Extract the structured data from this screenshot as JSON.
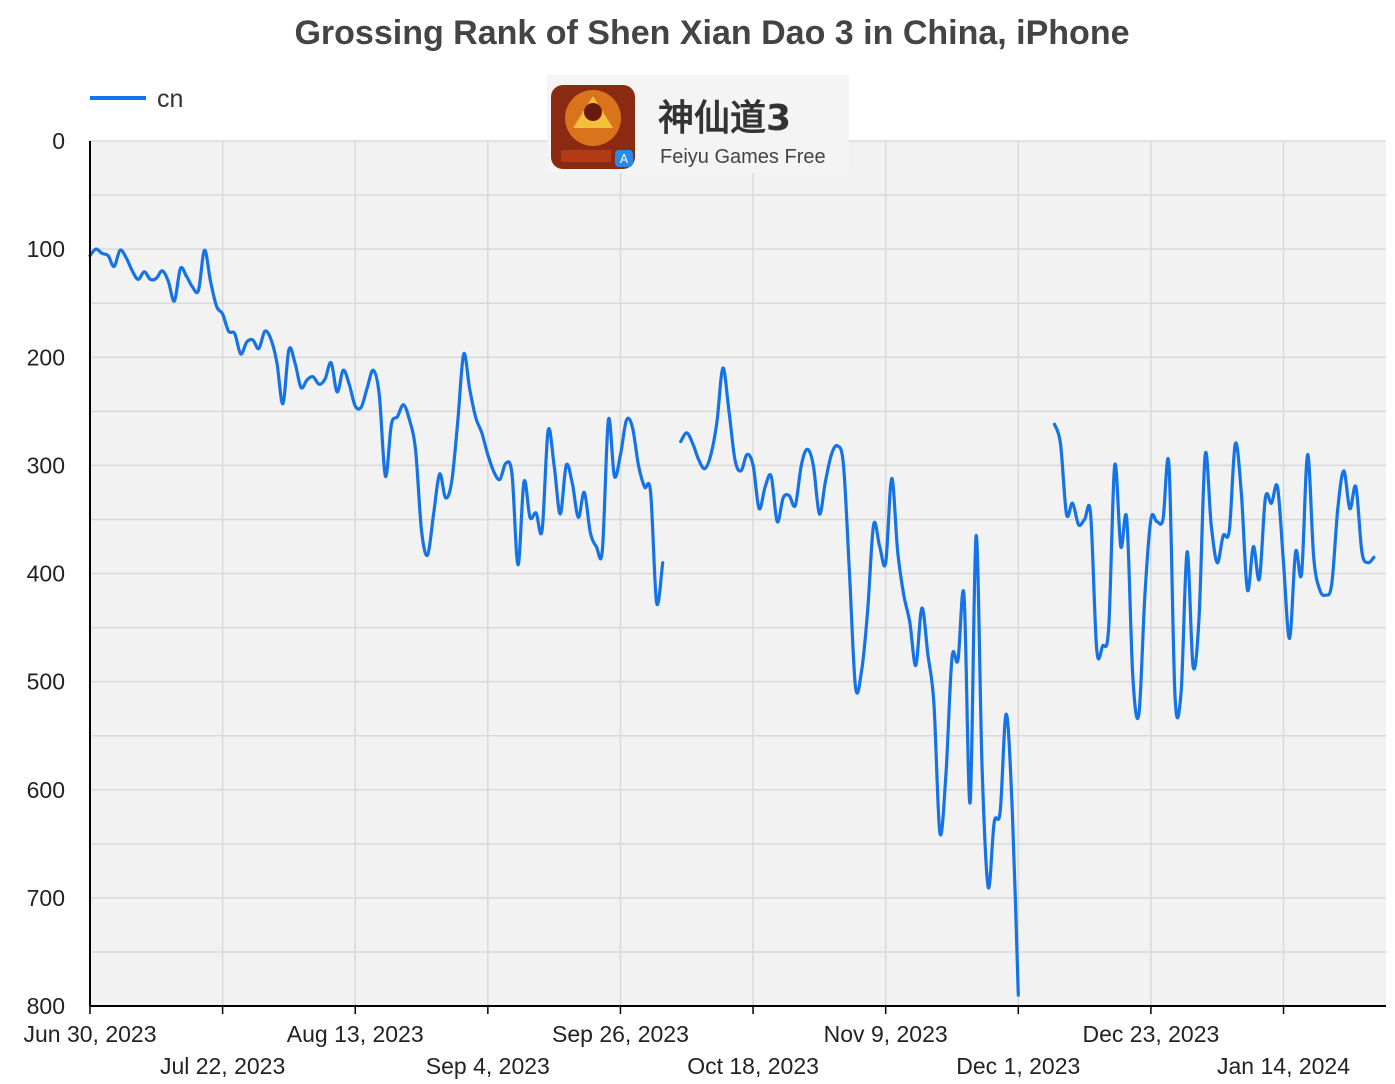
{
  "chart_data": {
    "type": "line",
    "title": "Grossing Rank of Shen Xian Dao 3 in China, iPhone",
    "legend": {
      "position": "top-left",
      "entries": [
        "cn"
      ]
    },
    "app_badge": {
      "name": "神仙道3",
      "publisher": "Feiyu Games Free",
      "icon": "game-app-icon"
    },
    "y_axis": {
      "inverted": true,
      "ylim": [
        0,
        800
      ],
      "ticks": [
        "0",
        "100",
        "200",
        "300",
        "400",
        "500",
        "600",
        "700",
        "800"
      ]
    },
    "x_axis": {
      "range": [
        "2023-06-30",
        "2024-01-31"
      ],
      "ticks": [
        {
          "date": "2023-06-30",
          "label": "Jun 30, 2023"
        },
        {
          "date": "2023-07-22",
          "label": "Jul 22, 2023"
        },
        {
          "date": "2023-08-13",
          "label": "Aug 13, 2023"
        },
        {
          "date": "2023-09-04",
          "label": "Sep 4, 2023"
        },
        {
          "date": "2023-09-26",
          "label": "Sep 26, 2023"
        },
        {
          "date": "2023-10-18",
          "label": "Oct 18, 2023"
        },
        {
          "date": "2023-11-09",
          "label": "Nov 9, 2023"
        },
        {
          "date": "2023-12-01",
          "label": "Dec 1, 2023"
        },
        {
          "date": "2023-12-23",
          "label": "Dec 23, 2023"
        },
        {
          "date": "2024-01-14",
          "label": "Jan 14, 2024"
        }
      ]
    },
    "grid": true,
    "colors": {
      "series": "#1473e6",
      "plot_bg": "#f2f2f2",
      "grid": "#d9d9d9"
    },
    "series": [
      {
        "name": "cn",
        "segments": [
          [
            [
              "2023-06-30",
              106
            ],
            [
              "2023-07-01",
              100
            ],
            [
              "2023-07-02",
              104
            ],
            [
              "2023-07-03",
              106
            ],
            [
              "2023-07-04",
              116
            ],
            [
              "2023-07-05",
              101
            ],
            [
              "2023-07-06",
              108
            ],
            [
              "2023-07-07",
              120
            ],
            [
              "2023-07-08",
              128
            ],
            [
              "2023-07-09",
              121
            ],
            [
              "2023-07-10",
              128
            ],
            [
              "2023-07-11",
              127
            ],
            [
              "2023-07-12",
              120
            ],
            [
              "2023-07-13",
              130
            ],
            [
              "2023-07-14",
              148
            ],
            [
              "2023-07-15",
              118
            ],
            [
              "2023-07-16",
              125
            ],
            [
              "2023-07-17",
              135
            ],
            [
              "2023-07-18",
              138
            ],
            [
              "2023-07-19",
              101
            ],
            [
              "2023-07-20",
              130
            ],
            [
              "2023-07-21",
              153
            ],
            [
              "2023-07-22",
              160
            ],
            [
              "2023-07-23",
              176
            ],
            [
              "2023-07-24",
              178
            ],
            [
              "2023-07-25",
              197
            ],
            [
              "2023-07-26",
              186
            ],
            [
              "2023-07-27",
              184
            ],
            [
              "2023-07-28",
              192
            ],
            [
              "2023-07-29",
              176
            ],
            [
              "2023-07-30",
              183
            ],
            [
              "2023-07-31",
              205
            ],
            [
              "2023-08-01",
              243
            ],
            [
              "2023-08-02",
              193
            ],
            [
              "2023-08-03",
              205
            ],
            [
              "2023-08-04",
              228
            ],
            [
              "2023-08-05",
              221
            ],
            [
              "2023-08-06",
              218
            ],
            [
              "2023-08-07",
              225
            ],
            [
              "2023-08-08",
              220
            ],
            [
              "2023-08-09",
              205
            ],
            [
              "2023-08-10",
              232
            ],
            [
              "2023-08-11",
              212
            ],
            [
              "2023-08-12",
              225
            ],
            [
              "2023-08-13",
              245
            ],
            [
              "2023-08-14",
              246
            ],
            [
              "2023-08-15",
              228
            ],
            [
              "2023-08-16",
              212
            ],
            [
              "2023-08-17",
              235
            ],
            [
              "2023-08-18",
              310
            ],
            [
              "2023-08-19",
              262
            ],
            [
              "2023-08-20",
              255
            ],
            [
              "2023-08-21",
              244
            ],
            [
              "2023-08-22",
              258
            ],
            [
              "2023-08-23",
              285
            ],
            [
              "2023-08-24",
              360
            ],
            [
              "2023-08-25",
              383
            ],
            [
              "2023-08-26",
              345
            ],
            [
              "2023-08-27",
              308
            ],
            [
              "2023-08-28",
              330
            ],
            [
              "2023-08-29",
              315
            ],
            [
              "2023-08-30",
              260
            ],
            [
              "2023-08-31",
              197
            ],
            [
              "2023-09-01",
              230
            ],
            [
              "2023-09-02",
              256
            ],
            [
              "2023-09-03",
              270
            ],
            [
              "2023-09-04",
              290
            ],
            [
              "2023-09-05",
              306
            ],
            [
              "2023-09-06",
              313
            ],
            [
              "2023-09-07",
              298
            ],
            [
              "2023-09-08",
              308
            ],
            [
              "2023-09-09",
              392
            ],
            [
              "2023-09-10",
              315
            ],
            [
              "2023-09-11",
              348
            ],
            [
              "2023-09-12",
              344
            ],
            [
              "2023-09-13",
              360
            ],
            [
              "2023-09-14",
              268
            ],
            [
              "2023-09-15",
              300
            ],
            [
              "2023-09-16",
              345
            ],
            [
              "2023-09-17",
              300
            ],
            [
              "2023-09-18",
              316
            ],
            [
              "2023-09-19",
              348
            ],
            [
              "2023-09-20",
              325
            ],
            [
              "2023-09-21",
              362
            ],
            [
              "2023-09-22",
              375
            ],
            [
              "2023-09-23",
              378
            ],
            [
              "2023-09-24",
              258
            ],
            [
              "2023-09-25",
              310
            ],
            [
              "2023-09-26",
              290
            ],
            [
              "2023-09-27",
              258
            ],
            [
              "2023-09-28",
              265
            ],
            [
              "2023-09-29",
              300
            ],
            [
              "2023-09-30",
              320
            ],
            [
              "2023-10-01",
              325
            ],
            [
              "2023-10-02",
              427
            ],
            [
              "2023-10-03",
              390
            ]
          ],
          [
            [
              "2023-10-06",
              278
            ],
            [
              "2023-10-07",
              270
            ],
            [
              "2023-10-08",
              280
            ],
            [
              "2023-10-09",
              295
            ],
            [
              "2023-10-10",
              303
            ],
            [
              "2023-10-11",
              290
            ],
            [
              "2023-10-12",
              260
            ],
            [
              "2023-10-13",
              210
            ],
            [
              "2023-10-14",
              250
            ],
            [
              "2023-10-15",
              295
            ],
            [
              "2023-10-16",
              305
            ],
            [
              "2023-10-17",
              290
            ],
            [
              "2023-10-18",
              300
            ],
            [
              "2023-10-19",
              340
            ],
            [
              "2023-10-20",
              320
            ],
            [
              "2023-10-21",
              310
            ],
            [
              "2023-10-22",
              352
            ],
            [
              "2023-10-23",
              330
            ],
            [
              "2023-10-24",
              328
            ],
            [
              "2023-10-25",
              337
            ],
            [
              "2023-10-26",
              300
            ],
            [
              "2023-10-27",
              285
            ],
            [
              "2023-10-28",
              300
            ],
            [
              "2023-10-29",
              345
            ],
            [
              "2023-10-30",
              315
            ],
            [
              "2023-10-31",
              290
            ],
            [
              "2023-11-01",
              282
            ],
            [
              "2023-11-02",
              300
            ],
            [
              "2023-11-03",
              400
            ],
            [
              "2023-11-04",
              505
            ],
            [
              "2023-11-05",
              490
            ],
            [
              "2023-11-06",
              435
            ],
            [
              "2023-11-07",
              355
            ],
            [
              "2023-11-08",
              375
            ],
            [
              "2023-11-09",
              390
            ],
            [
              "2023-11-10",
              312
            ],
            [
              "2023-11-11",
              380
            ],
            [
              "2023-11-12",
              420
            ],
            [
              "2023-11-13",
              445
            ],
            [
              "2023-11-14",
              485
            ],
            [
              "2023-11-15",
              432
            ],
            [
              "2023-11-16",
              475
            ],
            [
              "2023-11-17",
              520
            ],
            [
              "2023-11-18",
              640
            ],
            [
              "2023-11-19",
              585
            ],
            [
              "2023-11-20",
              478
            ],
            [
              "2023-11-21",
              480
            ],
            [
              "2023-11-22",
              420
            ],
            [
              "2023-11-23",
              612
            ],
            [
              "2023-11-24",
              365
            ],
            [
              "2023-11-25",
              580
            ],
            [
              "2023-11-26",
              690
            ],
            [
              "2023-11-27",
              630
            ],
            [
              "2023-11-28",
              620
            ],
            [
              "2023-11-29",
              530
            ],
            [
              "2023-11-30",
              620
            ],
            [
              "2023-12-01",
              790
            ]
          ],
          [
            [
              "2023-12-07",
              262
            ],
            [
              "2023-12-08",
              280
            ],
            [
              "2023-12-09",
              345
            ],
            [
              "2023-12-10",
              335
            ],
            [
              "2023-12-11",
              355
            ],
            [
              "2023-12-12",
              350
            ],
            [
              "2023-12-13",
              345
            ],
            [
              "2023-12-14",
              470
            ],
            [
              "2023-12-15",
              467
            ],
            [
              "2023-12-16",
              450
            ],
            [
              "2023-12-17",
              300
            ],
            [
              "2023-12-18",
              375
            ],
            [
              "2023-12-19",
              350
            ],
            [
              "2023-12-20",
              495
            ],
            [
              "2023-12-21",
              530
            ],
            [
              "2023-12-22",
              420
            ],
            [
              "2023-12-23",
              350
            ],
            [
              "2023-12-24",
              352
            ],
            [
              "2023-12-25",
              350
            ],
            [
              "2023-12-26",
              300
            ],
            [
              "2023-12-27",
              513
            ],
            [
              "2023-12-28",
              510
            ],
            [
              "2023-12-29",
              380
            ],
            [
              "2023-12-30",
              486
            ],
            [
              "2023-12-31",
              440
            ],
            [
              "2024-01-01",
              290
            ],
            [
              "2024-01-02",
              355
            ],
            [
              "2024-01-03",
              390
            ],
            [
              "2024-01-04",
              365
            ],
            [
              "2024-01-05",
              360
            ],
            [
              "2024-01-06",
              280
            ],
            [
              "2024-01-07",
              325
            ],
            [
              "2024-01-08",
              415
            ],
            [
              "2024-01-09",
              375
            ],
            [
              "2024-01-10",
              405
            ],
            [
              "2024-01-11",
              330
            ],
            [
              "2024-01-12",
              335
            ],
            [
              "2024-01-13",
              320
            ],
            [
              "2024-01-14",
              390
            ],
            [
              "2024-01-15",
              460
            ],
            [
              "2024-01-16",
              380
            ],
            [
              "2024-01-17",
              400
            ],
            [
              "2024-01-18",
              290
            ],
            [
              "2024-01-19",
              385
            ],
            [
              "2024-01-20",
              415
            ],
            [
              "2024-01-21",
              420
            ],
            [
              "2024-01-22",
              410
            ],
            [
              "2024-01-23",
              340
            ],
            [
              "2024-01-24",
              305
            ],
            [
              "2024-01-25",
              340
            ],
            [
              "2024-01-26",
              320
            ],
            [
              "2024-01-27",
              380
            ],
            [
              "2024-01-28",
              390
            ],
            [
              "2024-01-29",
              385
            ]
          ]
        ]
      }
    ]
  }
}
